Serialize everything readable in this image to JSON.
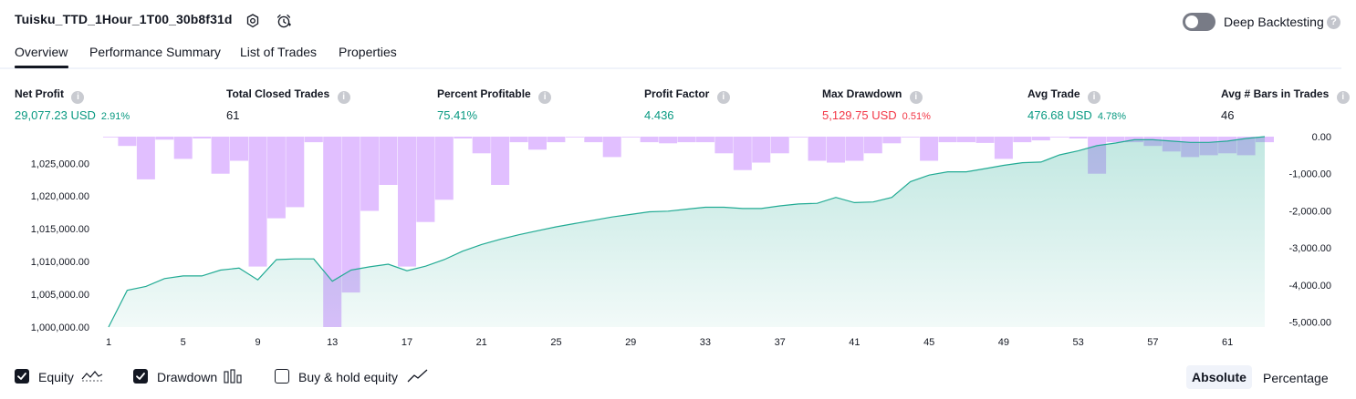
{
  "header": {
    "title": "Tuisku_TTD_1Hour_1T00_30b8f31d",
    "deep_backtesting_label": "Deep Backtesting",
    "deep_backtesting_enabled": false
  },
  "tabs": [
    {
      "label": "Overview",
      "active": true
    },
    {
      "label": "Performance Summary",
      "active": false
    },
    {
      "label": "List of Trades",
      "active": false
    },
    {
      "label": "Properties",
      "active": false
    }
  ],
  "metrics": [
    {
      "label": "Net Profit",
      "value": "29,077.23 USD",
      "pct": "2.91%",
      "color": "#089981"
    },
    {
      "label": "Total Closed Trades",
      "value": "61",
      "pct": "",
      "color": "#131722"
    },
    {
      "label": "Percent Profitable",
      "value": "75.41%",
      "pct": "",
      "color": "#089981"
    },
    {
      "label": "Profit Factor",
      "value": "4.436",
      "pct": "",
      "color": "#089981"
    },
    {
      "label": "Max Drawdown",
      "value": "5,129.75 USD",
      "pct": "0.51%",
      "color": "#f23645"
    },
    {
      "label": "Avg Trade",
      "value": "476.68 USD",
      "pct": "4.78%",
      "color": "#089981"
    },
    {
      "label": "Avg # Bars in Trades",
      "value": "46",
      "pct": "",
      "color": "#131722"
    }
  ],
  "legend": {
    "equity": {
      "label": "Equity",
      "checked": true
    },
    "drawdown": {
      "label": "Drawdown",
      "checked": true
    },
    "buyhold": {
      "label": "Buy & hold equity",
      "checked": false
    }
  },
  "scale_toggle": {
    "absolute": "Absolute",
    "percentage": "Percentage",
    "selected": "Absolute"
  },
  "colors": {
    "equity_line": "#22ab94",
    "drawdown_bar": "#e1bfff",
    "accent": "#131722"
  },
  "chart_data": {
    "type": "area",
    "x_ticks": [
      "1",
      "5",
      "9",
      "13",
      "17",
      "21",
      "25",
      "29",
      "33",
      "37",
      "41",
      "45",
      "49",
      "53",
      "57",
      "61"
    ],
    "y_left_ticks": [
      "1,000,000.00",
      "1,005,000.00",
      "1,010,000.00",
      "1,015,000.00",
      "1,020,000.00",
      "1,025,000.00"
    ],
    "y_right_ticks": [
      "0.00",
      "-1,000.00",
      "-2,000.00",
      "-3,000.00",
      "-4,000.00",
      "-5,000.00"
    ],
    "y_left_range": [
      1000000,
      1029077
    ],
    "y_right_range": [
      -5130,
      0
    ],
    "grid": false,
    "series": [
      {
        "name": "Equity",
        "values": [
          1000000,
          1005600,
          1006200,
          1007400,
          1007800,
          1007800,
          1008700,
          1009000,
          1007200,
          1010300,
          1010400,
          1010400,
          1007000,
          1008700,
          1009200,
          1009600,
          1008600,
          1009300,
          1010300,
          1011600,
          1012600,
          1013400,
          1014100,
          1014700,
          1015300,
          1015800,
          1016300,
          1016800,
          1017200,
          1017600,
          1017700,
          1018000,
          1018300,
          1018300,
          1018100,
          1018100,
          1018500,
          1018800,
          1018900,
          1019800,
          1019000,
          1019100,
          1019800,
          1022200,
          1023200,
          1023700,
          1023700,
          1024200,
          1024700,
          1025100,
          1025200,
          1026300,
          1026900,
          1027700,
          1028100,
          1028600,
          1028600,
          1028400,
          1028200,
          1028200,
          1028400,
          1028800,
          1029077
        ]
      },
      {
        "name": "Drawdown",
        "values": [
          -20,
          -250,
          -1150,
          -80,
          -600,
          -50,
          -1000,
          -650,
          -3500,
          -2200,
          -1900,
          -150,
          -5130,
          -4200,
          -2000,
          -1300,
          -3500,
          -2300,
          -1700,
          -50,
          -450,
          -1300,
          -150,
          -350,
          -150,
          -20,
          -150,
          -550,
          -20,
          -150,
          -180,
          -150,
          -150,
          -450,
          -900,
          -700,
          -450,
          -20,
          -650,
          -700,
          -650,
          -450,
          -180,
          -20,
          -650,
          -150,
          -150,
          -170,
          -600,
          -150,
          -100,
          -20,
          -50,
          -1000,
          -150,
          -150,
          -250,
          -400,
          -550,
          -500,
          -450,
          -500,
          -150
        ]
      }
    ]
  }
}
